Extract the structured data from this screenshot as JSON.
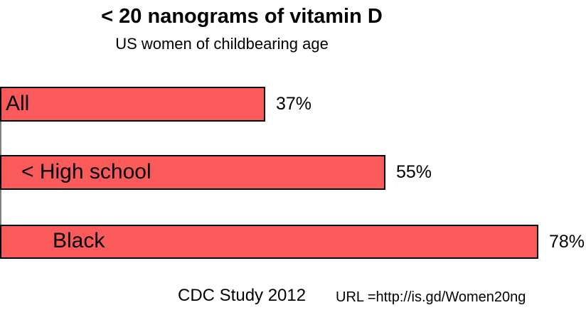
{
  "chart_data": {
    "type": "bar",
    "orientation": "horizontal",
    "title": "< 20 nanograms of vitamin D",
    "subtitle": "US women of childbearing age",
    "categories": [
      "All",
      "< High school",
      "Black"
    ],
    "values": [
      37,
      55,
      78
    ],
    "bars": [
      {
        "label": "All",
        "value": 37,
        "value_label": "37%"
      },
      {
        "label": "< High school",
        "value": 55,
        "value_label": "55%"
      },
      {
        "label": "Black",
        "value": 78,
        "value_label": "78%"
      }
    ],
    "xlim": [
      0,
      80
    ],
    "grid": false,
    "legend": false,
    "bar_color": "#FB5A5A",
    "bar_border_color": "#000000",
    "axis_line_color": "#808080",
    "footer": {
      "source": "CDC Study 2012",
      "url_label": "URL =http://is.gd/Women20ng"
    }
  }
}
